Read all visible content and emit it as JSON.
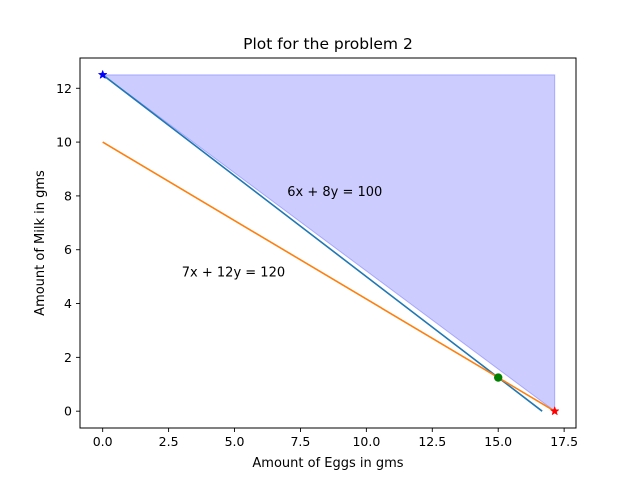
{
  "chart_data": {
    "type": "line",
    "title": "Plot for the problem 2",
    "xlabel": "Amount of Eggs in gms",
    "ylabel": "Amount of Milk in gms",
    "xlim": [
      -0.86,
      17.95
    ],
    "ylim": [
      -0.625,
      13.125
    ],
    "x_ticks": [
      0,
      2.5,
      5,
      7.5,
      10,
      12.5,
      15,
      17.5
    ],
    "x_tick_labels": [
      "0.0",
      "2.5",
      "5.0",
      "7.5",
      "10.0",
      "12.5",
      "15.0",
      "17.5"
    ],
    "y_ticks": [
      0,
      2,
      4,
      6,
      8,
      10,
      12
    ],
    "y_tick_labels": [
      "0",
      "2",
      "4",
      "6",
      "8",
      "10",
      "12"
    ],
    "grid": false,
    "series": [
      {
        "color": "#1f77b4",
        "x": [
          0,
          16.6667
        ],
        "y": [
          12.5,
          0
        ]
      },
      {
        "color": "#ff7f0e",
        "x": [
          0,
          17.1429
        ],
        "y": [
          10,
          0
        ]
      }
    ],
    "fill_region": {
      "color": "#0000ff",
      "opacity": 0.2,
      "x": [
        0,
        17.1429,
        17.1429
      ],
      "y": [
        12.5,
        12.5,
        0
      ]
    },
    "markers": [
      {
        "x": 0,
        "y": 12.5,
        "shape": "star",
        "color": "#0000ff"
      },
      {
        "x": 17.1429,
        "y": 0,
        "shape": "star",
        "color": "#ff0000"
      },
      {
        "x": 15,
        "y": 1.25,
        "shape": "circle",
        "color": "#008000"
      }
    ],
    "annotations": [
      {
        "text": "6x + 8y = 100",
        "x": 7,
        "y": 8
      },
      {
        "text": "7x + 12y = 120",
        "x": 3,
        "y": 5
      }
    ]
  }
}
